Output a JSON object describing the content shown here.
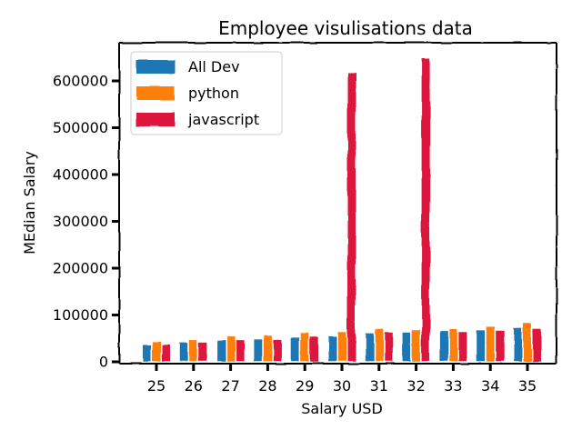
{
  "chart_data": {
    "type": "bar",
    "title": "Employee visulisations data",
    "xlabel": "Salary USD",
    "ylabel": "MEdian Salary",
    "categories": [
      "25",
      "26",
      "27",
      "28",
      "29",
      "30",
      "31",
      "32",
      "33",
      "34",
      "35"
    ],
    "series": [
      {
        "name": "All Dev",
        "color": "#1f77b4",
        "values": [
          38496,
          42000,
          46752,
          49320,
          53200,
          56000,
          62316,
          64928,
          67317,
          68748,
          73752
        ]
      },
      {
        "name": "python",
        "color": "#ff7f0e",
        "values": [
          45372,
          48876,
          53850,
          57287,
          63016,
          65998,
          70003,
          70000,
          71496,
          75370,
          83640
        ]
      },
      {
        "name": "javascript",
        "color": "#dc143c",
        "values": [
          37810,
          43515,
          46823,
          49293,
          53437,
          618000,
          64000,
          650000,
          65000,
          67000,
          71000
        ]
      }
    ],
    "ylim": [
      0,
      650000
    ],
    "yticks": [
      0,
      100000,
      200000,
      300000,
      400000,
      500000,
      600000
    ],
    "legend_position": "top-left",
    "grid": false,
    "style": "xkcd"
  }
}
